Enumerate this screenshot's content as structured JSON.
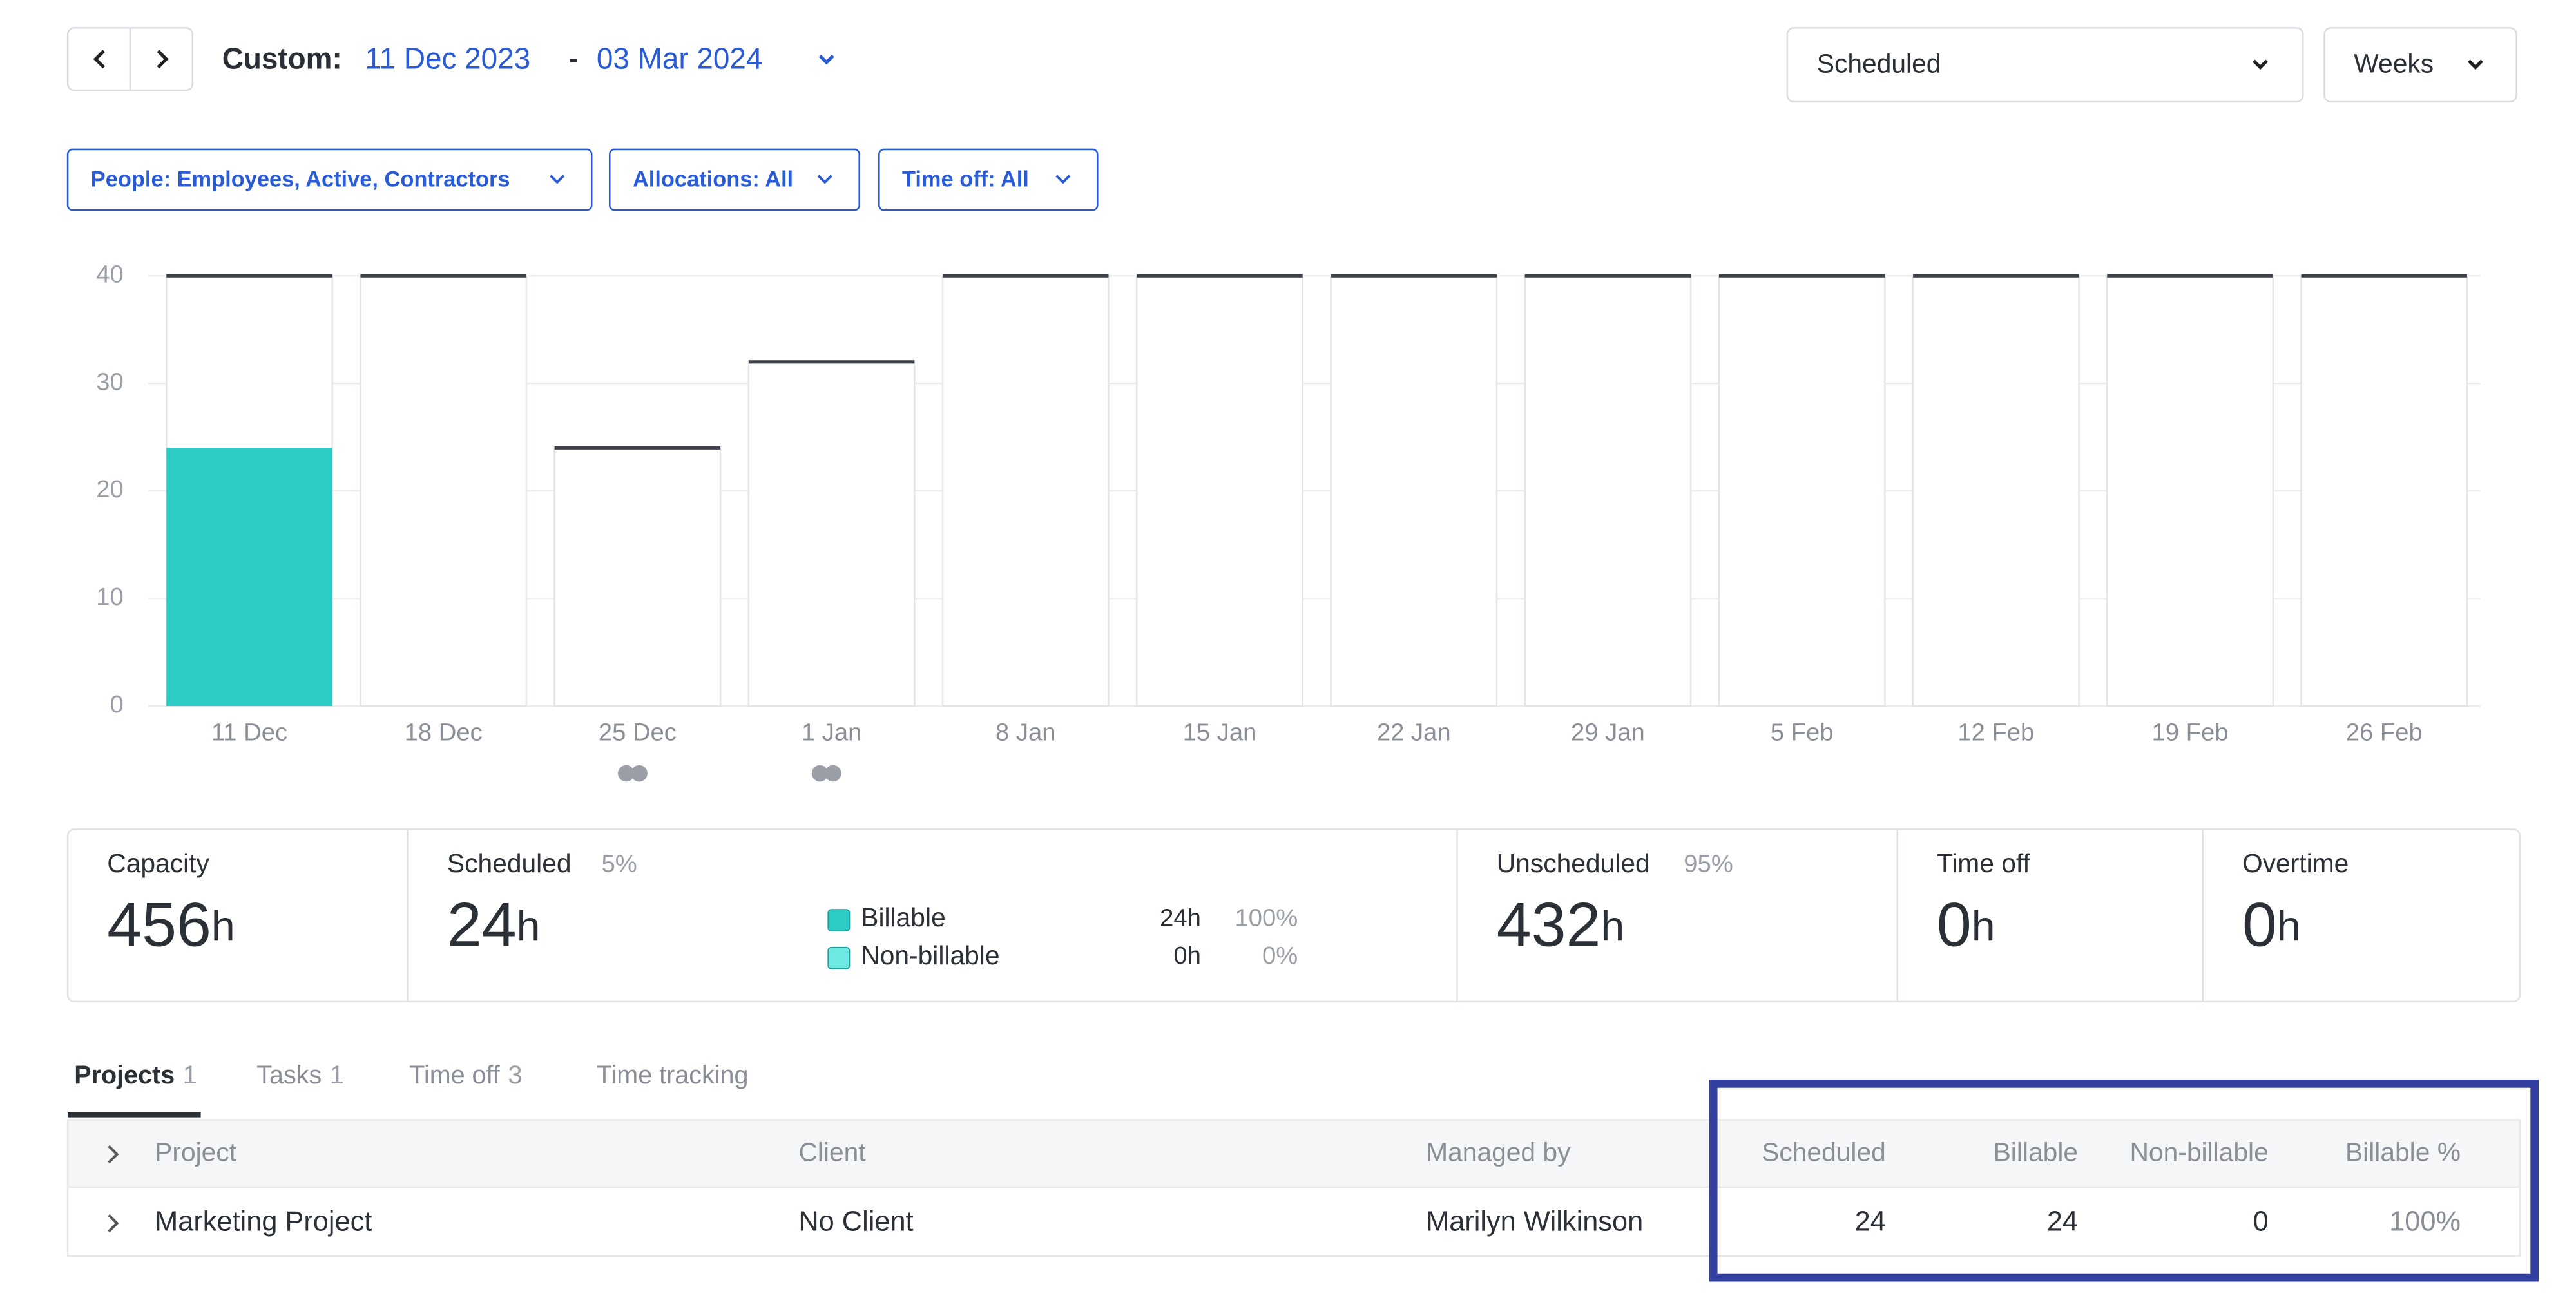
{
  "header": {
    "range_label": "Custom:",
    "start": "11 Dec 2023",
    "separator": "-",
    "end": "03 Mar 2024",
    "metric": "Scheduled",
    "unit": "Weeks"
  },
  "filters": [
    "People: Employees, Active, Contractors",
    "Allocations: All",
    "Time off: All"
  ],
  "chart_data": {
    "type": "bar",
    "categories": [
      "11 Dec",
      "18 Dec",
      "25 Dec",
      "1 Jan",
      "8 Jan",
      "15 Jan",
      "22 Jan",
      "29 Jan",
      "5 Feb",
      "12 Feb",
      "19 Feb",
      "26 Feb"
    ],
    "series": [
      {
        "color": "#2ccbc3",
        "values": [
          24,
          0,
          0,
          0,
          0,
          0,
          0,
          0,
          0,
          0,
          0,
          0
        ]
      },
      {
        "color": "#3b4049",
        "values": [
          40,
          40,
          24,
          32,
          40,
          40,
          40,
          40,
          40,
          40,
          40,
          40
        ]
      }
    ],
    "ylim": [
      0,
      40
    ],
    "yticks": [
      0,
      10,
      20,
      30,
      40
    ],
    "grid": true
  },
  "summary": {
    "capacity": {
      "label": "Capacity",
      "value": "456",
      "unit": "h"
    },
    "scheduled": {
      "label": "Scheduled",
      "percent": "5%",
      "value": "24",
      "unit": "h",
      "breakdown": [
        {
          "label": "Billable",
          "color": "#2ccbc3",
          "hours": "24h",
          "percent": "100%"
        },
        {
          "label": "Non-billable",
          "color": "#6ee8e2",
          "hours": "0h",
          "percent": "0%"
        }
      ]
    },
    "unscheduled": {
      "label": "Unscheduled",
      "percent": "95%",
      "value": "432",
      "unit": "h"
    },
    "time_off": {
      "label": "Time off",
      "value": "0",
      "unit": "h"
    },
    "overtime": {
      "label": "Overtime",
      "value": "0",
      "unit": "h"
    }
  },
  "tabs": [
    {
      "label": "Projects",
      "count": "1"
    },
    {
      "label": "Tasks",
      "count": "1"
    },
    {
      "label": "Time off",
      "count": "3"
    },
    {
      "label": "Time tracking"
    }
  ],
  "table": {
    "columns": [
      "Project",
      "Client",
      "Managed by",
      "Scheduled",
      "Billable",
      "Non-billable",
      "Billable %"
    ],
    "rows": [
      [
        "Marketing Project",
        "No Client",
        "Marilyn Wilkinson",
        24,
        24,
        0,
        "100%"
      ]
    ]
  }
}
